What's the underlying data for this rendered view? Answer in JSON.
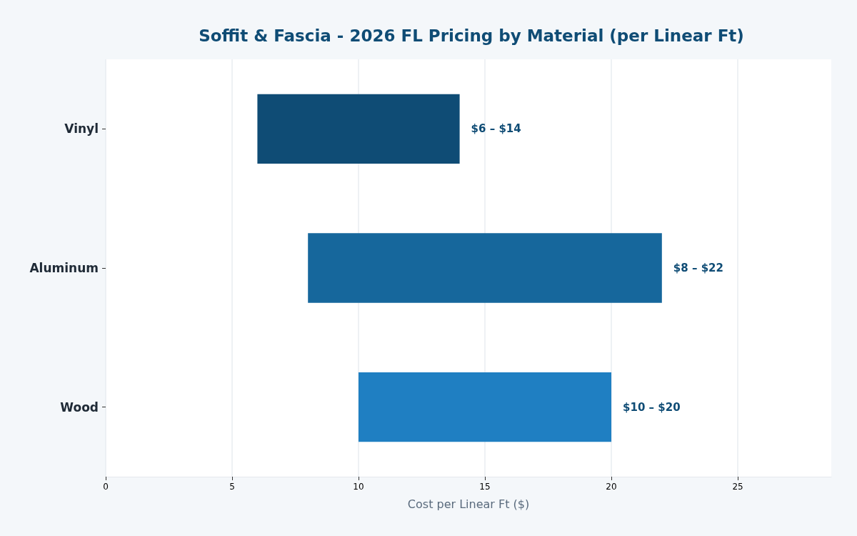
{
  "chart_data": {
    "type": "bar",
    "orientation": "horizontal",
    "title": "Soffit & Fascia - 2026 FL Pricing by Material (per Linear Ft)",
    "xlabel": "Cost per Linear Ft ($)",
    "categories": [
      "Vinyl",
      "Aluminum",
      "Wood"
    ],
    "base": [
      6,
      8,
      10
    ],
    "values": [
      8,
      14,
      10
    ],
    "colors": [
      "#0f4c75",
      "#16679c",
      "#1f7fc2"
    ],
    "annotations": [
      {
        "text": "$6 – $14",
        "x": 14,
        "y": "Vinyl"
      },
      {
        "text": "$8 – $22",
        "x": 22,
        "y": "Aluminum"
      },
      {
        "text": "$10 – $20",
        "x": 20,
        "y": "Wood"
      }
    ],
    "xlim": [
      0,
      28.7
    ],
    "xticks": [
      0,
      5,
      10,
      15,
      20,
      25
    ],
    "grid": "x"
  }
}
